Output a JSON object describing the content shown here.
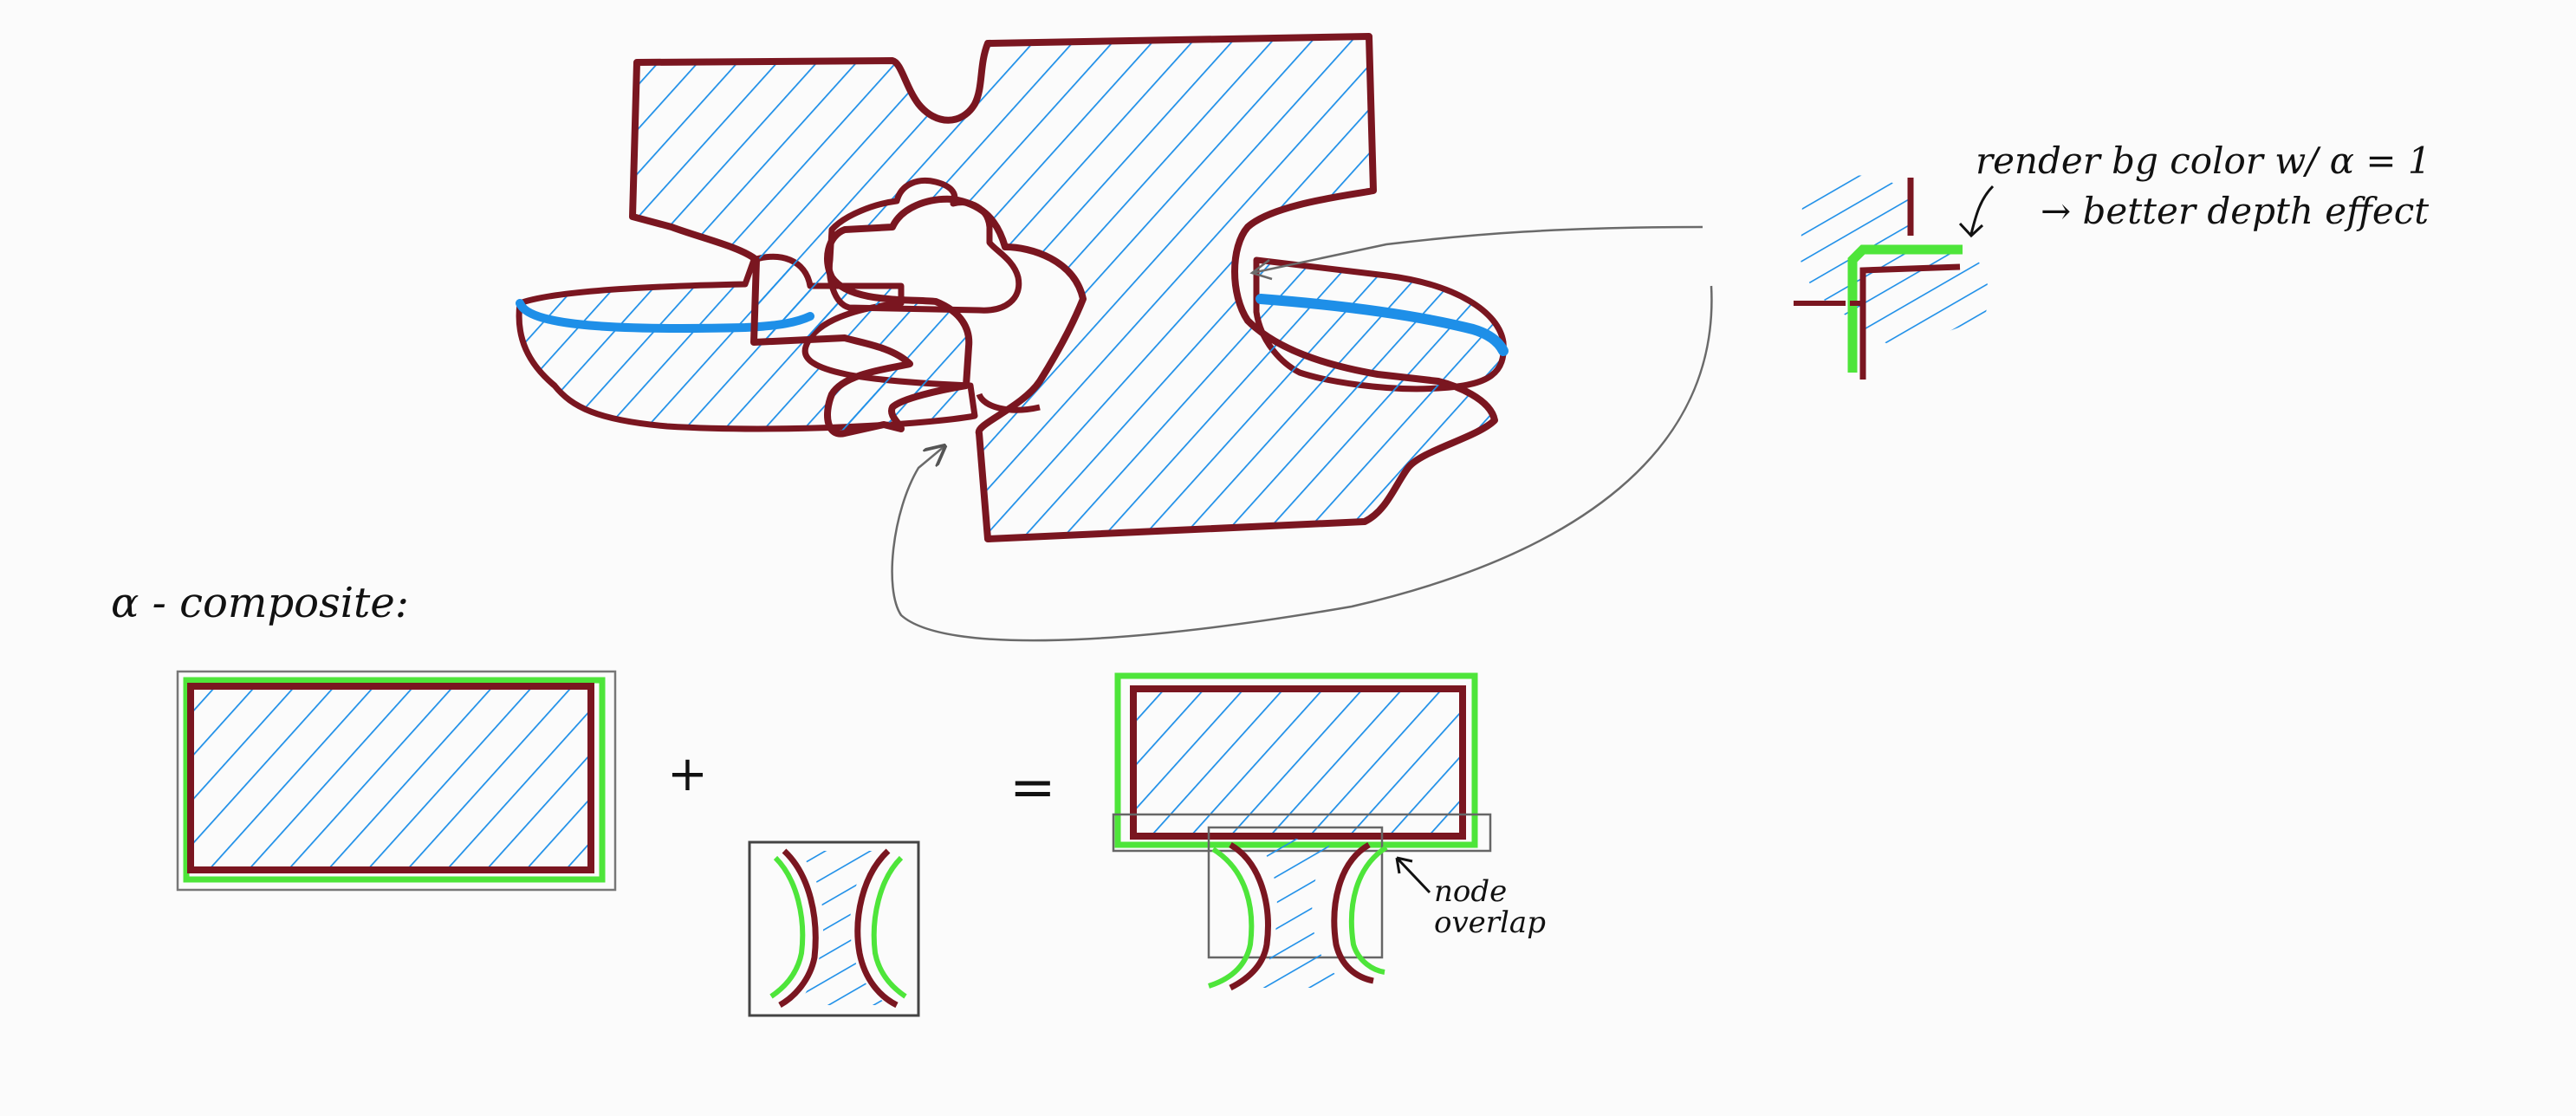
{
  "colors": {
    "paper": "#fbfbfb",
    "outline": "#7a1620",
    "hatch": "#1e8fe8",
    "alpha_edge": "#4ee53a",
    "pencil": "#7a7a7a",
    "ink": "#111111"
  },
  "annotations": {
    "render_note": "render bg color w/ α = 1",
    "depth_note": "→ better depth effect",
    "composite_label": "α - composite:",
    "plus": "+",
    "equals": "=",
    "node_overlap_line1": "node",
    "node_overlap_line2": "overlap"
  }
}
